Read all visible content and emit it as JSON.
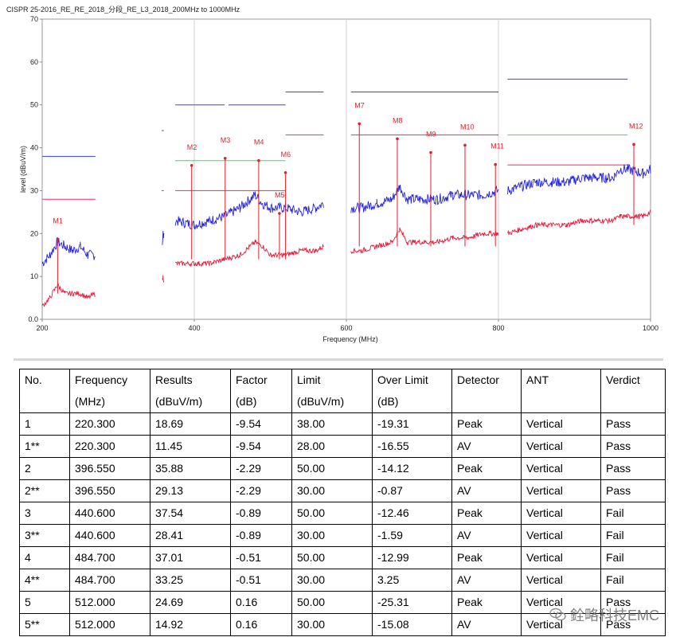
{
  "chart_data": {
    "type": "line",
    "title": "CISPR 25-2016_RE_RE_2018_分段_RE_L3_2018_200MHz to 1000MHz",
    "xlabel": "Frequency (MHz)",
    "ylabel": "level (dBuV/m)",
    "xlim": [
      200,
      1000
    ],
    "ylim": [
      0,
      70
    ],
    "x_ticks": [
      "200",
      "400",
      "600",
      "800",
      "1000"
    ],
    "y_ticks": [
      "0.0",
      "10",
      "20",
      "30",
      "40",
      "50",
      "60",
      "70"
    ],
    "grid": "vertical gridlines at 400, 600, 800 MHz",
    "limit_lines": [
      {
        "kind": "peak",
        "color": "#3344ee",
        "segments": [
          [
            200,
            270,
            38
          ],
          [
            357,
            360,
            44
          ],
          [
            375,
            440,
            50
          ],
          [
            445,
            520,
            50
          ],
          [
            520,
            570,
            53
          ],
          [
            606,
            800,
            53
          ],
          [
            812,
            970,
            56
          ]
        ]
      },
      {
        "kind": "qp",
        "color": "#33dd66",
        "segments": [
          [
            375,
            520,
            37
          ],
          [
            812,
            970,
            43
          ]
        ]
      },
      {
        "kind": "av",
        "color": "#e03060",
        "segments": [
          [
            200,
            270,
            28
          ],
          [
            357,
            360,
            30
          ],
          [
            375,
            520,
            30
          ],
          [
            520,
            570,
            43
          ],
          [
            606,
            800,
            43
          ],
          [
            812,
            970,
            36
          ]
        ]
      }
    ],
    "series": [
      {
        "color": "#2222dd",
        "segments": [
          {
            "x": [
              200,
              210,
              220,
              230,
              240,
              250,
              260,
              270
            ],
            "y": [
              13,
              15,
              18,
              17,
              16,
              17,
              15,
              15
            ]
          },
          {
            "x": [
              358,
              359,
              360
            ],
            "y": [
              18,
              20,
              19
            ]
          },
          {
            "x": [
              375,
              400,
              420,
              440,
              460,
              480,
              490,
              500,
              520,
              540,
              560,
              570
            ],
            "y": [
              23,
              22,
              23,
              24,
              26,
              29,
              27,
              26,
              26,
              25,
              26,
              27
            ]
          },
          {
            "x": [
              606,
              620,
              640,
              660,
              670,
              680,
              700,
              720,
              740,
              760,
              780,
              800
            ],
            "y": [
              26,
              26,
              27,
              28,
              31,
              28,
              28,
              28,
              29,
              29,
              29,
              30
            ]
          },
          {
            "x": [
              812,
              830,
              850,
              870,
              890,
              910,
              930,
              950,
              960,
              970,
              990,
              1000
            ],
            "y": [
              30,
              31,
              32,
              32,
              32,
              33,
              33,
              33,
              35,
              35,
              34,
              35
            ]
          }
        ]
      },
      {
        "color": "#e21a3a",
        "segments": [
          {
            "x": [
              200,
              210,
              220,
              230,
              240,
              250,
              260,
              270
            ],
            "y": [
              3,
              5,
              8,
              6,
              6,
              6,
              5,
              6
            ]
          },
          {
            "x": [
              358,
              359,
              360
            ],
            "y": [
              9,
              10,
              9
            ]
          },
          {
            "x": [
              375,
              400,
              420,
              440,
              460,
              480,
              490,
              500,
              520,
              540,
              560,
              570
            ],
            "y": [
              13,
              13,
              13,
              14,
              15,
              18,
              17,
              15,
              15,
              16,
              16,
              17
            ]
          },
          {
            "x": [
              606,
              620,
              640,
              660,
              670,
              680,
              700,
              720,
              740,
              760,
              780,
              800
            ],
            "y": [
              16,
              16,
              17,
              18,
              21,
              18,
              18,
              18,
              19,
              19,
              20,
              20
            ]
          },
          {
            "x": [
              812,
              830,
              850,
              870,
              890,
              910,
              930,
              950,
              960,
              970,
              990,
              1000
            ],
            "y": [
              20,
              21,
              22,
              22,
              22,
              23,
              23,
              23,
              24,
              24,
              24,
              25
            ]
          }
        ]
      }
    ],
    "markers": [
      {
        "label": "M1",
        "x": 220.3,
        "y": 18.69
      },
      {
        "label": "M2",
        "x": 396.55,
        "y": 35.88
      },
      {
        "label": "M3",
        "x": 440.6,
        "y": 37.54
      },
      {
        "label": "M4",
        "x": 484.7,
        "y": 37.01
      },
      {
        "label": "M5",
        "x": 512.0,
        "y": 24.69
      },
      {
        "label": "M6",
        "x": 520.0,
        "y": 34.2
      },
      {
        "label": "M7",
        "x": 617.0,
        "y": 45.6
      },
      {
        "label": "M8",
        "x": 667.0,
        "y": 42.1
      },
      {
        "label": "M9",
        "x": 711.0,
        "y": 38.9
      },
      {
        "label": "M10",
        "x": 756.0,
        "y": 40.6
      },
      {
        "label": "M11",
        "x": 796.0,
        "y": 36.1
      },
      {
        "label": "M12",
        "x": 978.0,
        "y": 40.8
      }
    ]
  },
  "table": {
    "headers": [
      [
        "No.",
        ""
      ],
      [
        "Frequency",
        "(MHz)"
      ],
      [
        "Results",
        "(dBuV/m)"
      ],
      [
        "Factor",
        "(dB)"
      ],
      [
        "Limit",
        "(dBuV/m)"
      ],
      [
        "Over Limit",
        "(dB)"
      ],
      [
        "Detector",
        ""
      ],
      [
        "ANT",
        ""
      ],
      [
        "Verdict",
        ""
      ]
    ],
    "rows": [
      [
        "1",
        "220.300",
        "18.69",
        "-9.54",
        "38.00",
        "-19.31",
        "Peak",
        "Vertical",
        "Pass"
      ],
      [
        "1**",
        "220.300",
        "11.45",
        "-9.54",
        "28.00",
        "-16.55",
        "AV",
        "Vertical",
        "Pass"
      ],
      [
        "2",
        "396.550",
        "35.88",
        "-2.29",
        "50.00",
        "-14.12",
        "Peak",
        "Vertical",
        "Pass"
      ],
      [
        "2**",
        "396.550",
        "29.13",
        "-2.29",
        "30.00",
        "-0.87",
        "AV",
        "Vertical",
        "Pass"
      ],
      [
        "3",
        "440.600",
        "37.54",
        "-0.89",
        "50.00",
        "-12.46",
        "Peak",
        "Vertical",
        "Fail"
      ],
      [
        "3**",
        "440.600",
        "28.41",
        "-0.89",
        "30.00",
        "-1.59",
        "AV",
        "Vertical",
        "Fail"
      ],
      [
        "4",
        "484.700",
        "37.01",
        "-0.51",
        "50.00",
        "-12.99",
        "Peak",
        "Vertical",
        "Fail"
      ],
      [
        "4**",
        "484.700",
        "33.25",
        "-0.51",
        "30.00",
        "3.25",
        "AV",
        "Vertical",
        "Fail"
      ],
      [
        "5",
        "512.000",
        "24.69",
        "0.16",
        "50.00",
        "-25.31",
        "Peak",
        "Vertical",
        "Pass"
      ],
      [
        "5**",
        "512.000",
        "14.92",
        "0.16",
        "30.00",
        "-15.08",
        "AV",
        "Vertical",
        "Pass"
      ]
    ]
  },
  "watermark": {
    "text": "銓略科技EMC",
    "icon": "wechat-icon"
  }
}
